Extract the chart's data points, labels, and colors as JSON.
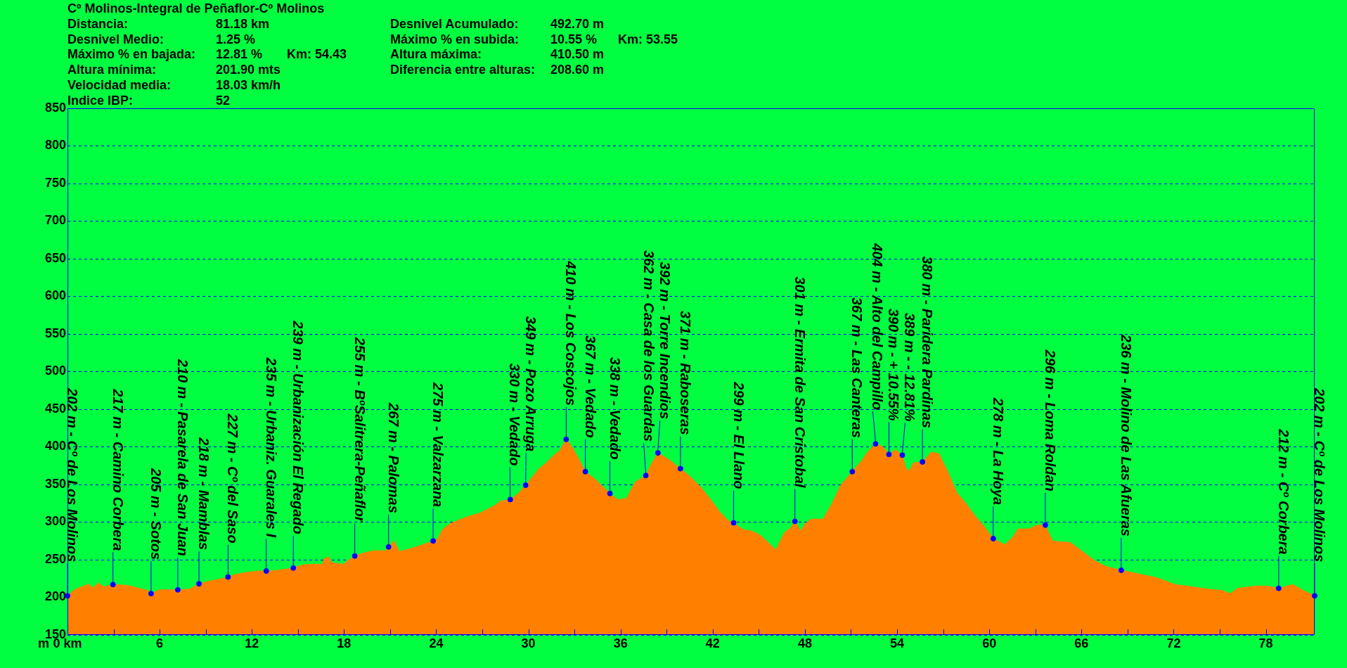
{
  "chart_data": {
    "type": "area",
    "title": "Cº Molinos-Integral de Peñaflor-Cº Molinos",
    "annotations": [
      "Distancia:\t81.18 km\t\tDesnivel Acumulado:\t492.70 m",
      "Desnivel Medio:\t1.25 %\t\tMáximo % en subida:\t10.55 %\tKm: 53.55",
      "Máximo % en bajada:\t12.81 %\tKm: 54.43\tAltura máxima:\t410.50 m",
      "Altura mínima:\t201.90 mts\t\tDiferencia entre alturas:\t208.60 m",
      "Velocidad media:\t18.03 km/h",
      "Indice IBP:\t52"
    ],
    "ylabel": "m",
    "xlim": [
      0,
      81.18
    ],
    "xticks": [
      {
        "value": 0,
        "label": "0 km"
      },
      {
        "value": 3,
        "label": null
      },
      6,
      {
        "value": 9,
        "label": null
      },
      12,
      {
        "value": 15,
        "label": null
      },
      18,
      {
        "value": 21,
        "label": null
      },
      24,
      {
        "value": 27,
        "label": null
      },
      30,
      {
        "value": 33,
        "label": null
      },
      36,
      {
        "value": 39,
        "label": null
      },
      42,
      {
        "value": 45,
        "label": null
      },
      48,
      {
        "value": 51,
        "label": null
      },
      54,
      {
        "value": 57,
        "label": null
      },
      60,
      {
        "value": 63,
        "label": null
      },
      66,
      {
        "value": 69,
        "label": null
      },
      72,
      {
        "value": 75,
        "label": null
      },
      78
    ],
    "ylim": [
      150,
      850
    ],
    "yticks": [
      150,
      200,
      250,
      300,
      350,
      400,
      450,
      500,
      550,
      600,
      650,
      700,
      750,
      800,
      850
    ],
    "grid": "y",
    "series": [
      {
        "color": "#ff8000",
        "x": [
          0,
          0.43,
          1.2,
          1.4,
          1.6,
          2.0,
          2.37,
          2.96,
          3.9,
          4.67,
          5.25,
          5.44,
          6.0,
          7.18,
          7.95,
          8.56,
          9.1,
          9.87,
          10.45,
          10.84,
          11.6,
          12.4,
          12.94,
          13.73,
          14.7,
          15.27,
          15.85,
          16.6,
          16.7,
          17.0,
          17.2,
          17.97,
          18.26,
          18.7,
          19.3,
          19.9,
          20.7,
          20.9,
          21.24,
          21.6,
          22.2,
          22.98,
          23.8,
          24.1,
          24.4,
          24.9,
          25.87,
          26.84,
          27.8,
          28.2,
          28.82,
          29.34,
          29.82,
          30.3,
          30.69,
          31.07,
          31.56,
          32.04,
          32.46,
          32.8,
          33.2,
          33.71,
          34.35,
          34.7,
          35.31,
          35.8,
          36.37,
          36.95,
          37.64,
          38.0,
          38.43,
          39.16,
          39.9,
          40.5,
          41.28,
          41.86,
          42.44,
          43.0,
          43.36,
          43.98,
          44.56,
          45.13,
          45.71,
          46.1,
          46.67,
          47.06,
          47.35,
          47.73,
          48.02,
          48.41,
          49.18,
          49.75,
          50.33,
          51.08,
          51.68,
          52.07,
          52.6,
          53.03,
          53.47,
          53.9,
          54.34,
          54.58,
          54.78,
          55.07,
          55.65,
          56.23,
          56.72,
          57.3,
          57.89,
          58.47,
          59.05,
          59.64,
          60.26,
          61.0,
          61.49,
          61.88,
          62.56,
          63.14,
          63.65,
          64.11,
          64.5,
          65.28,
          66.06,
          66.83,
          67.61,
          68.59,
          69.75,
          70.92,
          72.09,
          72.87,
          74.23,
          75.2,
          75.68,
          76.17,
          77.34,
          78.1,
          78.84,
          79.77,
          80.45,
          81.18
        ],
        "values": [
          202,
          210,
          216,
          218,
          212,
          219,
          214,
          217,
          216,
          212,
          209,
          205,
          210,
          210,
          211,
          218,
          221,
          224,
          227,
          230,
          233,
          235,
          235,
          236,
          239,
          243,
          244,
          244,
          251,
          254,
          246,
          244,
          249,
          255,
          259,
          262,
          262,
          267,
          275,
          261,
          264,
          269,
          275,
          278,
          290,
          298,
          306,
          312,
          322,
          328,
          330,
          338,
          349,
          361,
          371,
          377,
          387,
          395,
          410,
          401,
          387,
          367,
          357,
          350,
          338,
          330,
          331,
          353,
          362,
          377,
          392,
          383,
          371,
          361,
          345,
          330,
          314,
          302,
          299,
          290,
          288,
          282,
          271,
          263,
          286,
          292,
          301,
          288,
          298,
          304,
          304,
          324,
          349,
          367,
          381,
          393,
          404,
          401,
          390,
          396,
          389,
          371,
          368,
          379,
          380,
          393,
          391,
          367,
          339,
          325,
          309,
          295,
          278,
          270,
          279,
          291,
          291,
          296,
          296,
          275,
          274,
          273,
          261,
          249,
          241,
          236,
          231,
          226,
          217,
          215,
          211,
          209,
          205,
          212,
          215,
          215,
          212,
          217,
          209,
          202
        ]
      },
      {
        "type": "scatter",
        "color": "#0000ff",
        "marker": "circle",
        "x": [
          0,
          2.96,
          5.44,
          7.18,
          8.56,
          10.45,
          12.94,
          14.7,
          18.7,
          20.9,
          23.8,
          28.82,
          29.82,
          32.46,
          33.71,
          35.31,
          37.64,
          38.43,
          39.9,
          43.36,
          47.35,
          51.08,
          52.6,
          53.47,
          54.34,
          55.65,
          60.26,
          63.65,
          68.59,
          78.84,
          81.18
        ],
        "values": [
          202,
          217,
          205,
          210,
          218,
          227,
          235,
          239,
          255,
          267,
          275,
          330,
          349,
          410,
          367,
          338,
          362,
          392,
          371,
          299,
          301,
          367,
          404,
          390,
          389,
          380,
          278,
          296,
          236,
          212,
          202
        ],
        "value_labels": [
          "202 m - Cº de Los Molinos",
          "217 m - Camino Corbera",
          "205 m - Sotos",
          "210 m - Pasarela de San Juan",
          "218 m - Mamblas",
          "227 m - Cº del Saso",
          "235 m - Urbaniz. Guarales I",
          "239 m - Urbanización El Regado",
          "255 m - BºSalitrera-Peñaflor",
          "267 m - Palomas",
          "275 m - Valzarzana",
          "330 m - Vedado",
          "349 m - Pozo Arruga",
          "410 m - Los Coscojos",
          "367 m - Vedado",
          "338 m - Vedado",
          "362 m - Casa de los Guardas",
          "392 m - Torre Incendios",
          "371 m - Raboseras",
          "299 m - El Llano",
          "301 m - Ermita de San Cristobal",
          "367 m - Las Canteras",
          "404 m - Alto del Campillo",
          "390 m - + 10.55%",
          "389 m - - 12.81%",
          "380 m - Paridera Pardinas",
          "278 m - La Hoya",
          "296 m - Loma Roldan",
          "236 m - Molino de Las Afueras",
          "212 m - Cº Corbera",
          "202 m - Cº de Los Molinos"
        ]
      }
    ]
  }
}
